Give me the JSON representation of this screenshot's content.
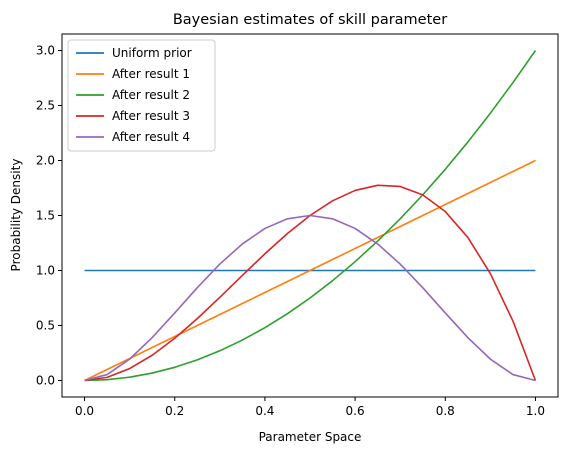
{
  "chart_data": {
    "type": "line",
    "title": "Bayesian estimates of skill parameter",
    "xlabel": "Parameter Space",
    "ylabel": "Probability Density",
    "xlim": [
      -0.05,
      1.05
    ],
    "ylim": [
      -0.15,
      3.15
    ],
    "xticks": [
      "0.0",
      "0.2",
      "0.4",
      "0.6",
      "0.8",
      "1.0"
    ],
    "yticks": [
      "0.0",
      "0.5",
      "1.0",
      "1.5",
      "2.0",
      "2.5",
      "3.0"
    ],
    "grid": false,
    "legend_position": "upper-left",
    "x": [
      0.0,
      0.05,
      0.1,
      0.15,
      0.2,
      0.25,
      0.3,
      0.35,
      0.4,
      0.45,
      0.5,
      0.55,
      0.6,
      0.65,
      0.7,
      0.75,
      0.8,
      0.85,
      0.9,
      0.95,
      1.0
    ],
    "series": [
      {
        "name": "Uniform prior",
        "color": "#1f77b4",
        "values": [
          1.0,
          1.0,
          1.0,
          1.0,
          1.0,
          1.0,
          1.0,
          1.0,
          1.0,
          1.0,
          1.0,
          1.0,
          1.0,
          1.0,
          1.0,
          1.0,
          1.0,
          1.0,
          1.0,
          1.0,
          1.0
        ]
      },
      {
        "name": "After result 1",
        "color": "#ff7f0e",
        "values": [
          0.0,
          0.1,
          0.2,
          0.3,
          0.4,
          0.5,
          0.6,
          0.7,
          0.8,
          0.9,
          1.0,
          1.1,
          1.2,
          1.3,
          1.4,
          1.5,
          1.6,
          1.7,
          1.8,
          1.9,
          2.0
        ]
      },
      {
        "name": "After result 2",
        "color": "#2ca02c",
        "values": [
          0.0,
          0.0075,
          0.03,
          0.0675,
          0.12,
          0.1875,
          0.27,
          0.3675,
          0.48,
          0.6075,
          0.75,
          0.9075,
          1.08,
          1.2675,
          1.47,
          1.6875,
          1.92,
          2.1675,
          2.43,
          2.7075,
          3.0
        ]
      },
      {
        "name": "After result 3",
        "color": "#d62728",
        "values": [
          0.0,
          0.0285,
          0.108,
          0.2295,
          0.384,
          0.5625,
          0.756,
          0.9555,
          1.152,
          1.3365,
          1.5,
          1.6335,
          1.728,
          1.7745,
          1.764,
          1.6875,
          1.536,
          1.3005,
          0.972,
          0.5415,
          0.0
        ]
      },
      {
        "name": "After result 4",
        "color": "#9467bd",
        "values": [
          0.0,
          0.0542,
          0.1944,
          0.3902,
          0.6144,
          0.8438,
          1.0584,
          1.2417,
          1.3824,
          1.4701,
          1.5,
          1.4701,
          1.3824,
          1.2417,
          1.0584,
          0.8438,
          0.6144,
          0.3902,
          0.1944,
          0.0542,
          0.0
        ]
      }
    ]
  }
}
